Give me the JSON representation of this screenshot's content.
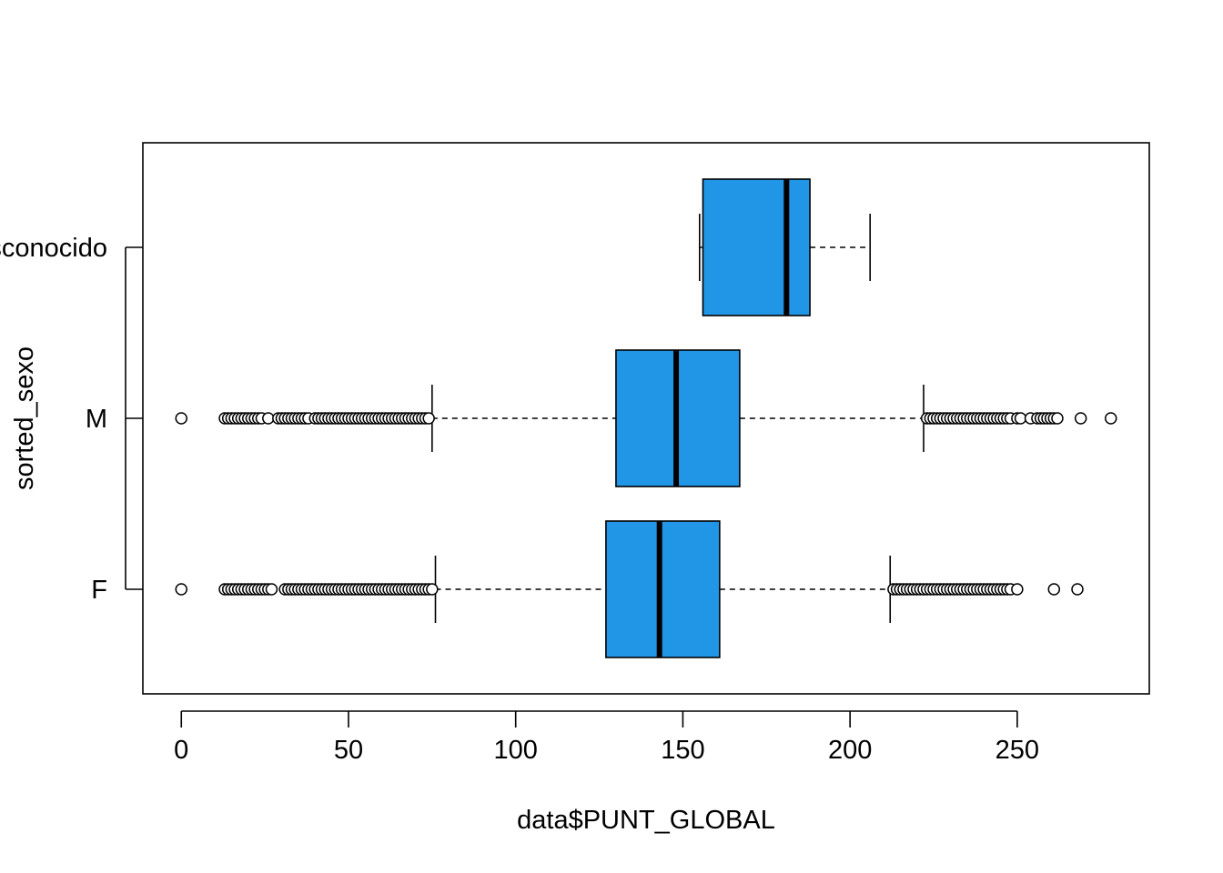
{
  "chart_data": {
    "type": "boxplot",
    "orientation": "horizontal",
    "xlabel": "data$PUNT_GLOBAL",
    "ylabel": "sorted_sexo",
    "xlim": [
      -11.5,
      289.5
    ],
    "xticks": [
      0,
      50,
      100,
      150,
      200,
      250
    ],
    "grid": false,
    "box_color": "#2196E6",
    "categories": [
      "F",
      "M",
      "Desconocido"
    ],
    "series": [
      {
        "category": "F",
        "whisker_low": 76,
        "q1": 127,
        "median": 143,
        "q3": 161,
        "whisker_high": 212,
        "outliers": [
          0,
          13,
          14,
          15,
          16,
          17,
          18,
          19,
          20,
          21,
          22,
          23,
          24,
          25,
          26,
          27,
          31,
          32,
          33,
          34,
          35,
          36,
          37,
          38,
          39,
          40,
          41,
          42,
          43,
          44,
          45,
          46,
          47,
          48,
          49,
          50,
          51,
          52,
          53,
          54,
          55,
          56,
          57,
          58,
          59,
          60,
          61,
          62,
          63,
          64,
          65,
          66,
          67,
          68,
          69,
          70,
          71,
          72,
          73,
          74,
          75,
          213,
          214,
          215,
          216,
          217,
          218,
          219,
          220,
          221,
          222,
          223,
          224,
          225,
          226,
          227,
          228,
          229,
          230,
          231,
          232,
          233,
          234,
          235,
          236,
          237,
          238,
          239,
          240,
          241,
          242,
          243,
          244,
          245,
          246,
          247,
          248,
          250,
          261,
          268
        ]
      },
      {
        "category": "M",
        "whisker_low": 75,
        "q1": 130,
        "median": 148,
        "q3": 167,
        "whisker_high": 222,
        "outliers": [
          0,
          13,
          14,
          15,
          16,
          17,
          18,
          19,
          20,
          21,
          22,
          23,
          24,
          26,
          29,
          30,
          31,
          32,
          33,
          34,
          35,
          36,
          37,
          38,
          40,
          41,
          42,
          43,
          44,
          45,
          46,
          47,
          48,
          49,
          50,
          51,
          52,
          53,
          54,
          55,
          56,
          57,
          58,
          59,
          60,
          61,
          62,
          63,
          64,
          65,
          66,
          67,
          68,
          69,
          70,
          71,
          72,
          73,
          74,
          223,
          224,
          225,
          226,
          227,
          228,
          229,
          230,
          231,
          232,
          233,
          234,
          235,
          236,
          237,
          238,
          239,
          240,
          241,
          242,
          243,
          244,
          245,
          246,
          247,
          248,
          250,
          251,
          254,
          256,
          257,
          258,
          259,
          260,
          261,
          262,
          269,
          278
        ]
      },
      {
        "category": "Desconocido",
        "whisker_low": 155,
        "q1": 156,
        "median": 181,
        "q3": 188,
        "whisker_high": 206,
        "outliers": []
      }
    ]
  }
}
